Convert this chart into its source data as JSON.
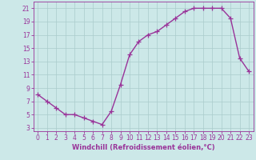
{
  "x": [
    0,
    1,
    2,
    3,
    4,
    5,
    6,
    7,
    8,
    9,
    10,
    11,
    12,
    13,
    14,
    15,
    16,
    17,
    18,
    19,
    20,
    21,
    22,
    23
  ],
  "y": [
    8,
    7,
    6,
    5,
    5,
    4.5,
    4,
    3.5,
    5.5,
    9.5,
    14,
    16,
    17,
    17.5,
    18.5,
    19.5,
    20.5,
    21,
    21,
    21,
    21,
    19.5,
    13.5,
    11.5
  ],
  "xlabel": "Windchill (Refroidissement éolien,°C)",
  "xlim": [
    -0.5,
    23.5
  ],
  "ylim": [
    2.5,
    22
  ],
  "yticks": [
    3,
    5,
    7,
    9,
    11,
    13,
    15,
    17,
    19,
    21
  ],
  "xticks": [
    0,
    1,
    2,
    3,
    4,
    5,
    6,
    7,
    8,
    9,
    10,
    11,
    12,
    13,
    14,
    15,
    16,
    17,
    18,
    19,
    20,
    21,
    22,
    23
  ],
  "line_color": "#993399",
  "marker": "+",
  "bg_color": "#cce8e8",
  "grid_color": "#aacccc",
  "axis_color": "#993399",
  "tick_label_color": "#993399",
  "xlabel_color": "#993399",
  "xlabel_fontsize": 6.0,
  "tick_fontsize": 5.5,
  "linewidth": 1.0,
  "markersize": 4,
  "markeredgewidth": 0.9
}
